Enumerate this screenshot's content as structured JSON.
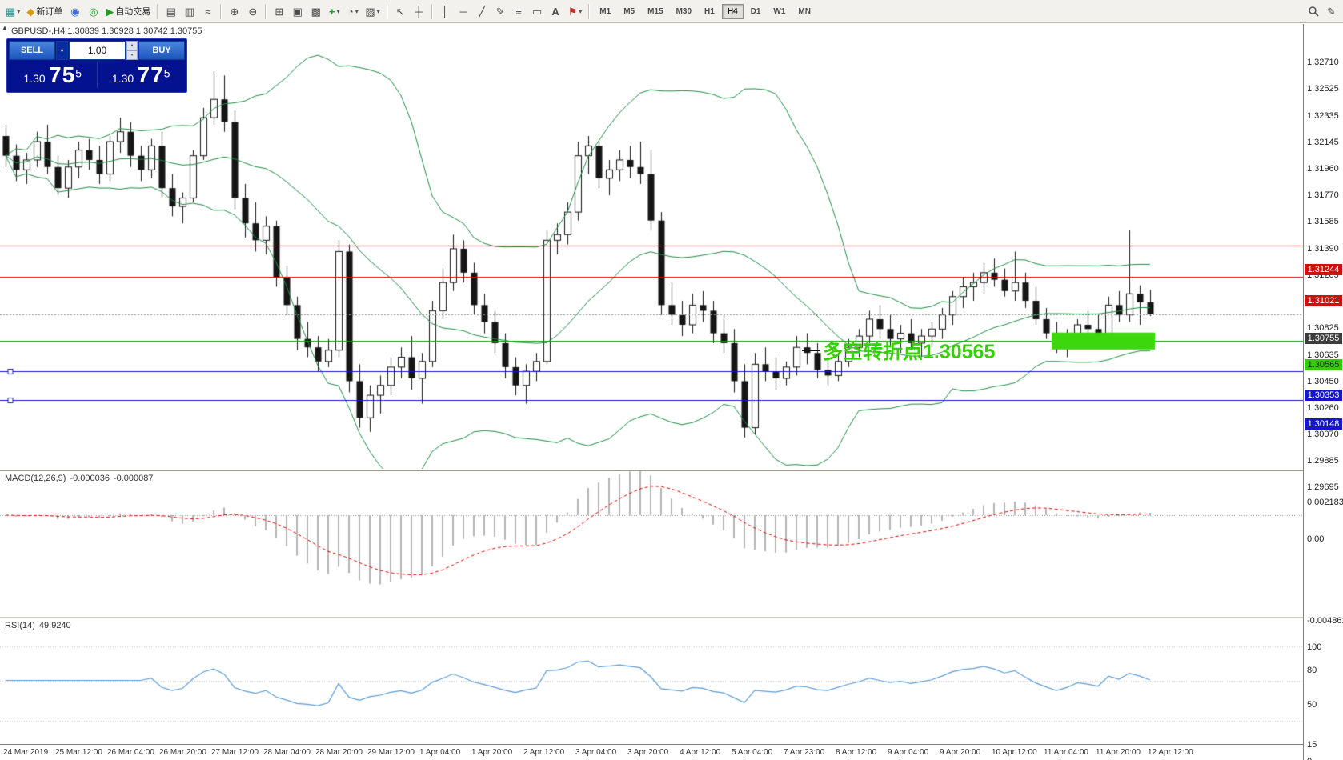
{
  "toolbar": {
    "new_order_label": "新订单",
    "autotrading_label": "自动交易",
    "timeframes": [
      "M1",
      "M5",
      "M15",
      "M30",
      "H1",
      "H4",
      "D1",
      "W1",
      "MN"
    ],
    "active_timeframe": "H4",
    "icons": {
      "new_chart": "▦",
      "dropdown": "▾",
      "new_order": "◆",
      "profile": "◉",
      "community": "◎",
      "autotrading_play": "▶",
      "chart_bars": "▤",
      "chart_candles": "▥",
      "chart_line": "≈",
      "zoom_in": "⊕",
      "zoom_out": "⊖",
      "tile_windows": "⊞",
      "arrange": "▣",
      "cascade": "▩",
      "indicators_add": "+",
      "periods": "◔",
      "templates": "▨",
      "cursor": "↖",
      "crosshair": "┼",
      "vline": "│",
      "hline": "─",
      "trendline": "╱",
      "polyline": "✎",
      "fibonacci": "≡",
      "shapes": "▭",
      "text_tool": "A",
      "arrows_tool": "⚑",
      "pencil": "✎"
    }
  },
  "chart": {
    "header": "GBPUSD-,H4   1.30839 1.30928 1.30742 1.30755",
    "collapse_icon": "▲"
  },
  "trade_panel": {
    "sell_label": "SELL",
    "buy_label": "BUY",
    "volume": "1.00",
    "sell": {
      "prefix": "1.30",
      "big": "75",
      "sup": "5"
    },
    "buy": {
      "prefix": "1.30",
      "big": "77",
      "sup": "5"
    },
    "spinner_up": "▴",
    "spinner_down": "▾",
    "dropdown": "▾"
  },
  "annotation": {
    "text": "多空转折点1.30565"
  },
  "price_axis": {
    "scale": [
      "1.32710",
      "1.32525",
      "1.32335",
      "1.32145",
      "1.31960",
      "1.31770",
      "1.31585",
      "1.31390",
      "1.31205",
      "1.30825",
      "1.30635",
      "1.30450",
      "1.30260",
      "1.30070",
      "1.29885",
      "1.29695"
    ],
    "tags": [
      {
        "text": "1.31244",
        "price": 1.31244,
        "bg": "#cc1111",
        "fg": "#ffffff"
      },
      {
        "text": "1.31021",
        "price": 1.31021,
        "bg": "#cc1111",
        "fg": "#ffffff"
      },
      {
        "text": "1.30755",
        "price": 1.30755,
        "bg": "#3c3c3c",
        "fg": "#ffffff"
      },
      {
        "text": "1.30565",
        "price": 1.30565,
        "bg": "#33cc00",
        "fg": "#0a3300"
      },
      {
        "text": "1.30353",
        "price": 1.30353,
        "bg": "#1515cc",
        "fg": "#ffffff"
      },
      {
        "text": "1.30148",
        "price": 1.30148,
        "bg": "#1515cc",
        "fg": "#ffffff"
      }
    ]
  },
  "macd": {
    "name": "MACD(12,26,9)",
    "value_main": "-0.000036",
    "value_signal": "-0.000087",
    "scale": [
      "0.002183",
      "0.00",
      "-0.004861"
    ]
  },
  "rsi": {
    "name": "RSI(14)",
    "value": "49.9240",
    "scale": [
      "100",
      "80",
      "50",
      "15",
      "0"
    ]
  },
  "time_axis": [
    "24 Mar 2019",
    "25 Mar 12:00",
    "26 Mar 04:00",
    "26 Mar 20:00",
    "27 Mar 12:00",
    "28 Mar 04:00",
    "28 Mar 20:00",
    "29 Mar 12:00",
    "1 Apr 04:00",
    "1 Apr 20:00",
    "2 Apr 12:00",
    "3 Apr 04:00",
    "3 Apr 20:00",
    "4 Apr 12:00",
    "5 Apr 04:00",
    "7 Apr 23:00",
    "8 Apr 12:00",
    "9 Apr 04:00",
    "9 Apr 20:00",
    "10 Apr 12:00",
    "11 Apr 04:00",
    "11 Apr 20:00",
    "12 Apr 12:00"
  ],
  "chart_data": {
    "type": "candlestick",
    "symbol": "GBPUSD",
    "timeframe": "H4",
    "indicators": {
      "bollinger_period": 20,
      "bollinger_dev": 2,
      "macd": [
        12,
        26,
        9
      ],
      "rsi_period": 14
    },
    "hlines": [
      {
        "price": 1.31244,
        "color": "#dd0000"
      },
      {
        "price": 1.31021,
        "color": "#dd0000"
      },
      {
        "price": 1.30755,
        "color": "#909090",
        "dash": true
      },
      {
        "price": 1.30565,
        "color": "#00a000"
      },
      {
        "price": 1.30353,
        "color": "#1515cc",
        "handles": true
      },
      {
        "price": 1.30148,
        "color": "#1515cc",
        "handles": true
      }
    ],
    "highlight_rect": {
      "bar_start": 101,
      "bar_end": 110,
      "price_top": 1.30625,
      "price_bottom": 1.30505,
      "color": "#3cd70c"
    },
    "ohlc": [
      [
        1.3202,
        1.321,
        1.318,
        1.3188
      ],
      [
        1.3188,
        1.3196,
        1.317,
        1.3178
      ],
      [
        1.3178,
        1.319,
        1.3168,
        1.3185
      ],
      [
        1.3185,
        1.3205,
        1.318,
        1.3198
      ],
      [
        1.3198,
        1.321,
        1.3175,
        1.318
      ],
      [
        1.318,
        1.3188,
        1.316,
        1.3165
      ],
      [
        1.3165,
        1.3185,
        1.3158,
        1.318
      ],
      [
        1.318,
        1.3198,
        1.3172,
        1.3192
      ],
      [
        1.3192,
        1.32,
        1.3178,
        1.3185
      ],
      [
        1.3185,
        1.3195,
        1.3168,
        1.3175
      ],
      [
        1.3175,
        1.3202,
        1.317,
        1.3198
      ],
      [
        1.3198,
        1.3215,
        1.319,
        1.3205
      ],
      [
        1.3205,
        1.3212,
        1.318,
        1.3188
      ],
      [
        1.3188,
        1.3195,
        1.317,
        1.3178
      ],
      [
        1.3178,
        1.32,
        1.3172,
        1.3195
      ],
      [
        1.3195,
        1.3205,
        1.3158,
        1.3165
      ],
      [
        1.3165,
        1.3175,
        1.3145,
        1.3152
      ],
      [
        1.3152,
        1.3162,
        1.314,
        1.3158
      ],
      [
        1.3158,
        1.3192,
        1.3155,
        1.3188
      ],
      [
        1.3188,
        1.3222,
        1.3185,
        1.3215
      ],
      [
        1.3215,
        1.3248,
        1.321,
        1.3228
      ],
      [
        1.3228,
        1.3245,
        1.3205,
        1.3212
      ],
      [
        1.3212,
        1.322,
        1.315,
        1.3158
      ],
      [
        1.3158,
        1.3168,
        1.313,
        1.314
      ],
      [
        1.314,
        1.3155,
        1.312,
        1.3128
      ],
      [
        1.3128,
        1.3145,
        1.3118,
        1.3138
      ],
      [
        1.3138,
        1.3142,
        1.3095,
        1.3102
      ],
      [
        1.3102,
        1.311,
        1.3075,
        1.3082
      ],
      [
        1.3082,
        1.3088,
        1.305,
        1.3058
      ],
      [
        1.3058,
        1.307,
        1.3045,
        1.3052
      ],
      [
        1.3052,
        1.306,
        1.3035,
        1.3042
      ],
      [
        1.3042,
        1.3058,
        1.3038,
        1.305
      ],
      [
        1.305,
        1.3128,
        1.3045,
        1.312
      ],
      [
        1.312,
        1.3125,
        1.302,
        1.3028
      ],
      [
        1.3028,
        1.304,
        1.2995,
        1.3002
      ],
      [
        1.3002,
        1.3025,
        1.2992,
        1.3018
      ],
      [
        1.3018,
        1.3032,
        1.3005,
        1.3025
      ],
      [
        1.3025,
        1.3045,
        1.3018,
        1.3038
      ],
      [
        1.3038,
        1.3052,
        1.303,
        1.3045
      ],
      [
        1.3045,
        1.306,
        1.3022,
        1.303
      ],
      [
        1.303,
        1.3048,
        1.3012,
        1.3042
      ],
      [
        1.3042,
        1.3085,
        1.3038,
        1.3078
      ],
      [
        1.3078,
        1.3108,
        1.3072,
        1.3098
      ],
      [
        1.3098,
        1.3132,
        1.3092,
        1.3122
      ],
      [
        1.3122,
        1.3128,
        1.3098,
        1.3105
      ],
      [
        1.3105,
        1.3112,
        1.3075,
        1.3082
      ],
      [
        1.3082,
        1.309,
        1.3062,
        1.307
      ],
      [
        1.307,
        1.3078,
        1.3048,
        1.3055
      ],
      [
        1.3055,
        1.3062,
        1.303,
        1.3038
      ],
      [
        1.3038,
        1.3045,
        1.3018,
        1.3025
      ],
      [
        1.3025,
        1.304,
        1.3012,
        1.3035
      ],
      [
        1.3035,
        1.3048,
        1.3028,
        1.3042
      ],
      [
        1.3042,
        1.3135,
        1.304,
        1.3128
      ],
      [
        1.3128,
        1.314,
        1.3118,
        1.3132
      ],
      [
        1.3132,
        1.3155,
        1.3125,
        1.3148
      ],
      [
        1.3148,
        1.3198,
        1.3142,
        1.3188
      ],
      [
        1.3188,
        1.3202,
        1.3175,
        1.3195
      ],
      [
        1.3195,
        1.32,
        1.3165,
        1.3172
      ],
      [
        1.3172,
        1.3185,
        1.316,
        1.3178
      ],
      [
        1.3178,
        1.3192,
        1.317,
        1.3185
      ],
      [
        1.3185,
        1.3195,
        1.3172,
        1.318
      ],
      [
        1.318,
        1.3198,
        1.3168,
        1.3175
      ],
      [
        1.3175,
        1.3192,
        1.3135,
        1.3142
      ],
      [
        1.3142,
        1.3148,
        1.3075,
        1.3082
      ],
      [
        1.3082,
        1.3098,
        1.3068,
        1.3075
      ],
      [
        1.3075,
        1.3085,
        1.306,
        1.3068
      ],
      [
        1.3068,
        1.309,
        1.3062,
        1.3082
      ],
      [
        1.3082,
        1.3092,
        1.307,
        1.3078
      ],
      [
        1.3078,
        1.3085,
        1.3055,
        1.3062
      ],
      [
        1.3062,
        1.3075,
        1.3048,
        1.3055
      ],
      [
        1.3055,
        1.3065,
        1.302,
        1.3028
      ],
      [
        1.3028,
        1.304,
        1.2988,
        1.2995
      ],
      [
        1.2995,
        1.3048,
        1.299,
        1.304
      ],
      [
        1.304,
        1.3052,
        1.3028,
        1.3035
      ],
      [
        1.3035,
        1.3045,
        1.3022,
        1.303
      ],
      [
        1.303,
        1.3042,
        1.3025,
        1.3038
      ],
      [
        1.3038,
        1.306,
        1.3032,
        1.3052
      ],
      [
        1.3052,
        1.3062,
        1.304,
        1.3048
      ],
      [
        1.3048,
        1.3055,
        1.303,
        1.3036
      ],
      [
        1.3036,
        1.3045,
        1.3025,
        1.3032
      ],
      [
        1.3032,
        1.3048,
        1.3028,
        1.3042
      ],
      [
        1.3042,
        1.3058,
        1.3038,
        1.3052
      ],
      [
        1.3052,
        1.3065,
        1.3045,
        1.306
      ],
      [
        1.306,
        1.3078,
        1.3055,
        1.3072
      ],
      [
        1.3072,
        1.3082,
        1.3058,
        1.3065
      ],
      [
        1.3065,
        1.3075,
        1.3052,
        1.3058
      ],
      [
        1.3058,
        1.3068,
        1.3048,
        1.3062
      ],
      [
        1.3062,
        1.3072,
        1.305,
        1.3055
      ],
      [
        1.3055,
        1.3065,
        1.3045,
        1.306
      ],
      [
        1.306,
        1.307,
        1.3052,
        1.3065
      ],
      [
        1.3065,
        1.308,
        1.3058,
        1.3075
      ],
      [
        1.3075,
        1.3092,
        1.3068,
        1.3088
      ],
      [
        1.3088,
        1.3102,
        1.308,
        1.3095
      ],
      [
        1.3095,
        1.3105,
        1.3085,
        1.3098
      ],
      [
        1.3098,
        1.3112,
        1.309,
        1.3105
      ],
      [
        1.3105,
        1.3115,
        1.3095,
        1.31
      ],
      [
        1.31,
        1.3108,
        1.3088,
        1.3092
      ],
      [
        1.3092,
        1.312,
        1.3085,
        1.3098
      ],
      [
        1.3098,
        1.3105,
        1.308,
        1.3085
      ],
      [
        1.3085,
        1.3095,
        1.3068,
        1.3072
      ],
      [
        1.3072,
        1.308,
        1.3058,
        1.3062
      ],
      [
        1.3062,
        1.307,
        1.3048,
        1.3052
      ],
      [
        1.3052,
        1.3065,
        1.3045,
        1.3058
      ],
      [
        1.3058,
        1.3072,
        1.3052,
        1.3068
      ],
      [
        1.3068,
        1.3078,
        1.306,
        1.3065
      ],
      [
        1.3065,
        1.3075,
        1.3055,
        1.306
      ],
      [
        1.306,
        1.3088,
        1.3055,
        1.3082
      ],
      [
        1.3082,
        1.3092,
        1.307,
        1.3075
      ],
      [
        1.3075,
        1.3135,
        1.307,
        1.309
      ],
      [
        1.309,
        1.3096,
        1.3068,
        1.30839
      ],
      [
        1.30839,
        1.30928,
        1.30742,
        1.30755
      ]
    ]
  }
}
